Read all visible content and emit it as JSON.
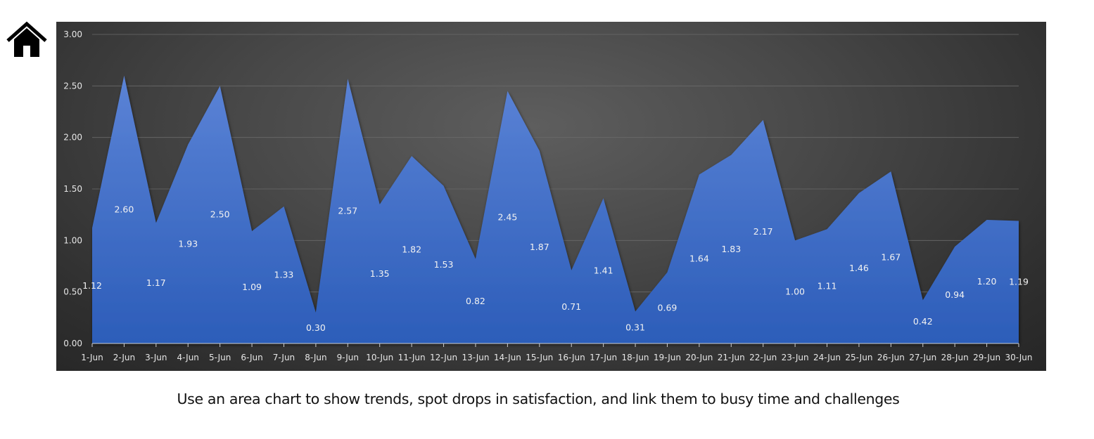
{
  "home": {
    "icon": "home-icon"
  },
  "caption": "Use an area chart to show trends, spot drops in satisfaction, and link them to busy time and challenges",
  "colors": {
    "area_top": "#5b83d6",
    "area_bottom": "#2c5db9",
    "gridline": "#6a6a6a",
    "axis": "#cfcfcf"
  },
  "chart_data": {
    "type": "area",
    "title": "",
    "xlabel": "",
    "ylabel": "",
    "ylim": [
      0,
      3
    ],
    "yticks": [
      "0.00",
      "0.50",
      "1.00",
      "1.50",
      "2.00",
      "2.50",
      "3.00"
    ],
    "grid": true,
    "categories": [
      "1-Jun",
      "2-Jun",
      "3-Jun",
      "4-Jun",
      "5-Jun",
      "6-Jun",
      "7-Jun",
      "8-Jun",
      "9-Jun",
      "10-Jun",
      "11-Jun",
      "12-Jun",
      "13-Jun",
      "14-Jun",
      "15-Jun",
      "16-Jun",
      "17-Jun",
      "18-Jun",
      "19-Jun",
      "20-Jun",
      "21-Jun",
      "22-Jun",
      "23-Jun",
      "24-Jun",
      "25-Jun",
      "26-Jun",
      "27-Jun",
      "28-Jun",
      "29-Jun",
      "30-Jun"
    ],
    "values": [
      1.12,
      2.6,
      1.17,
      1.93,
      2.5,
      1.09,
      1.33,
      0.3,
      2.57,
      1.35,
      1.82,
      1.53,
      0.82,
      2.45,
      1.87,
      0.71,
      1.41,
      0.31,
      0.69,
      1.64,
      1.83,
      2.17,
      1.0,
      1.11,
      1.46,
      1.67,
      0.42,
      0.94,
      1.2,
      1.19
    ],
    "value_labels": [
      "1.12",
      "2.60",
      "1.17",
      "1.93",
      "2.50",
      "1.09",
      "1.33",
      "0.30",
      "2.57",
      "1.35",
      "1.82",
      "1.53",
      "0.82",
      "2.45",
      "1.87",
      "0.71",
      "1.41",
      "0.31",
      "0.69",
      "1.64",
      "1.83",
      "2.17",
      "1.00",
      "1.11",
      "1.46",
      "1.67",
      "0.42",
      "0.94",
      "1.20",
      "1.19"
    ]
  }
}
